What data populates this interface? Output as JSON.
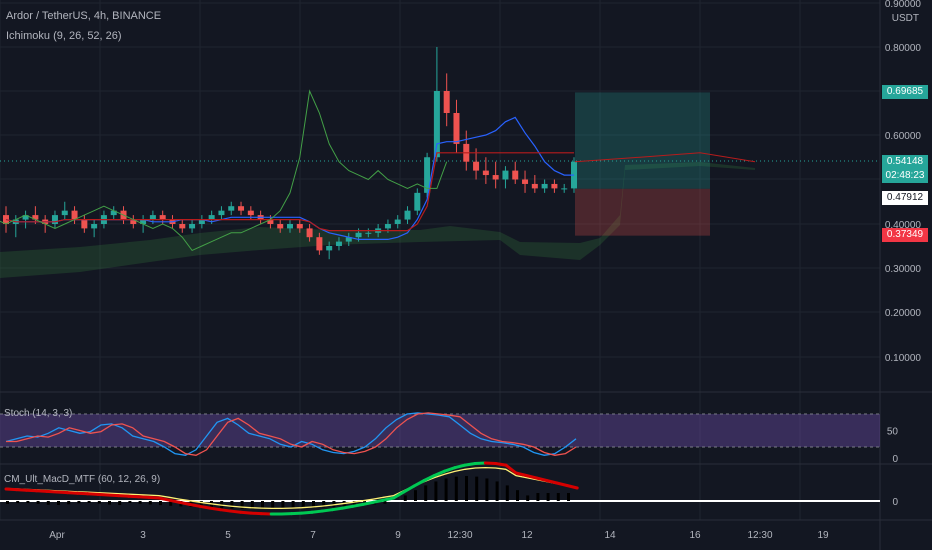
{
  "header": {
    "symbol_line": "Ardor / TetherUS, 4h, BINANCE",
    "ichimoku_label": "Ichimoku (9, 26, 52, 26)"
  },
  "price_axis": {
    "unit": "USDT",
    "ticks": [
      "0.90000",
      "0.80000",
      "0.60000",
      "0.40000",
      "0.30000",
      "0.20000",
      "0.10000"
    ]
  },
  "price_tags": {
    "target": "0.69685",
    "last": "0.54148",
    "countdown": "02:48:23",
    "entry": "0.47912",
    "stop": "0.37349"
  },
  "colors": {
    "background": "#131722",
    "up": "#26a69a",
    "down": "#ef5350",
    "tenkan": "#2962ff",
    "kijun": "#b71c1c",
    "chikou": "#43a047",
    "cloud": "#43a04733",
    "target_zone": "#26a69a40",
    "stop_zone": "#ef535040",
    "stoch_k": "#2196f3",
    "stoch_d": "#ef5350",
    "stoch_band": "#7e57c2"
  },
  "stoch": {
    "label": "Stoch (14, 3, 3)",
    "ticks": [
      "50",
      "0"
    ]
  },
  "macd": {
    "label": "CM_Ult_MacD_MTF (60, 12, 26, 9)",
    "ticks": [
      "0"
    ]
  },
  "time_axis": {
    "labels": [
      "Apr",
      "3",
      "5",
      "7",
      "9",
      "12:30",
      "12",
      "14",
      "16",
      "12:30",
      "19"
    ]
  },
  "chart_data": {
    "type": "candlestick",
    "title": "Ardor / TetherUS, 4h, BINANCE",
    "x_labels": [
      "Apr",
      "3",
      "5",
      "7",
      "9",
      "12:30",
      "12",
      "14",
      "16",
      "12:30",
      "19"
    ],
    "ylim": [
      0.06,
      0.92
    ],
    "y_ticks": [
      0.1,
      0.2,
      0.3,
      0.4,
      0.6,
      0.8,
      0.9
    ],
    "grid": true,
    "position": {
      "target": 0.69685,
      "entry": 0.47912,
      "stop": 0.37349,
      "last": 0.54148
    },
    "candles": [
      [
        0.42,
        0.44,
        0.38,
        0.4
      ],
      [
        0.4,
        0.42,
        0.37,
        0.41
      ],
      [
        0.41,
        0.43,
        0.39,
        0.42
      ],
      [
        0.42,
        0.44,
        0.4,
        0.41
      ],
      [
        0.41,
        0.42,
        0.38,
        0.4
      ],
      [
        0.4,
        0.43,
        0.39,
        0.42
      ],
      [
        0.42,
        0.45,
        0.41,
        0.43
      ],
      [
        0.43,
        0.44,
        0.4,
        0.41
      ],
      [
        0.41,
        0.42,
        0.38,
        0.39
      ],
      [
        0.39,
        0.41,
        0.37,
        0.4
      ],
      [
        0.4,
        0.43,
        0.39,
        0.42
      ],
      [
        0.42,
        0.44,
        0.41,
        0.43
      ],
      [
        0.43,
        0.44,
        0.4,
        0.41
      ],
      [
        0.41,
        0.42,
        0.39,
        0.4
      ],
      [
        0.4,
        0.42,
        0.38,
        0.41
      ],
      [
        0.41,
        0.43,
        0.4,
        0.42
      ],
      [
        0.42,
        0.43,
        0.4,
        0.41
      ],
      [
        0.41,
        0.42,
        0.39,
        0.4
      ],
      [
        0.4,
        0.41,
        0.38,
        0.39
      ],
      [
        0.39,
        0.41,
        0.38,
        0.4
      ],
      [
        0.4,
        0.42,
        0.39,
        0.41
      ],
      [
        0.41,
        0.43,
        0.4,
        0.42
      ],
      [
        0.42,
        0.44,
        0.41,
        0.43
      ],
      [
        0.43,
        0.45,
        0.42,
        0.44
      ],
      [
        0.44,
        0.45,
        0.42,
        0.43
      ],
      [
        0.43,
        0.44,
        0.41,
        0.42
      ],
      [
        0.42,
        0.43,
        0.4,
        0.41
      ],
      [
        0.41,
        0.42,
        0.39,
        0.4
      ],
      [
        0.4,
        0.41,
        0.38,
        0.39
      ],
      [
        0.39,
        0.41,
        0.38,
        0.4
      ],
      [
        0.4,
        0.41,
        0.38,
        0.39
      ],
      [
        0.39,
        0.4,
        0.36,
        0.37
      ],
      [
        0.37,
        0.38,
        0.33,
        0.34
      ],
      [
        0.34,
        0.36,
        0.32,
        0.35
      ],
      [
        0.35,
        0.37,
        0.34,
        0.36
      ],
      [
        0.36,
        0.38,
        0.35,
        0.37
      ],
      [
        0.37,
        0.39,
        0.36,
        0.38
      ],
      [
        0.38,
        0.39,
        0.37,
        0.38
      ],
      [
        0.38,
        0.4,
        0.37,
        0.39
      ],
      [
        0.39,
        0.41,
        0.38,
        0.4
      ],
      [
        0.4,
        0.42,
        0.39,
        0.41
      ],
      [
        0.41,
        0.44,
        0.4,
        0.43
      ],
      [
        0.43,
        0.48,
        0.42,
        0.47
      ],
      [
        0.47,
        0.56,
        0.46,
        0.55
      ],
      [
        0.55,
        0.8,
        0.54,
        0.7
      ],
      [
        0.7,
        0.74,
        0.62,
        0.65
      ],
      [
        0.65,
        0.68,
        0.56,
        0.58
      ],
      [
        0.58,
        0.61,
        0.52,
        0.54
      ],
      [
        0.54,
        0.57,
        0.5,
        0.52
      ],
      [
        0.52,
        0.55,
        0.49,
        0.51
      ],
      [
        0.51,
        0.54,
        0.48,
        0.5
      ],
      [
        0.5,
        0.53,
        0.48,
        0.52
      ],
      [
        0.52,
        0.54,
        0.49,
        0.5
      ],
      [
        0.5,
        0.52,
        0.47,
        0.49
      ],
      [
        0.49,
        0.51,
        0.47,
        0.48
      ],
      [
        0.48,
        0.5,
        0.47,
        0.49
      ],
      [
        0.49,
        0.5,
        0.47,
        0.48
      ],
      [
        0.48,
        0.49,
        0.47,
        0.48
      ],
      [
        0.48,
        0.55,
        0.47,
        0.54
      ]
    ],
    "indicators": {
      "stoch": {
        "name": "Stoch (14, 3, 3)",
        "ylim": [
          0,
          100
        ],
        "upper_band": 80,
        "lower_band": 20
      },
      "macd": {
        "name": "CM_Ult_MacD_MTF (60, 12, 26, 9)"
      }
    }
  }
}
